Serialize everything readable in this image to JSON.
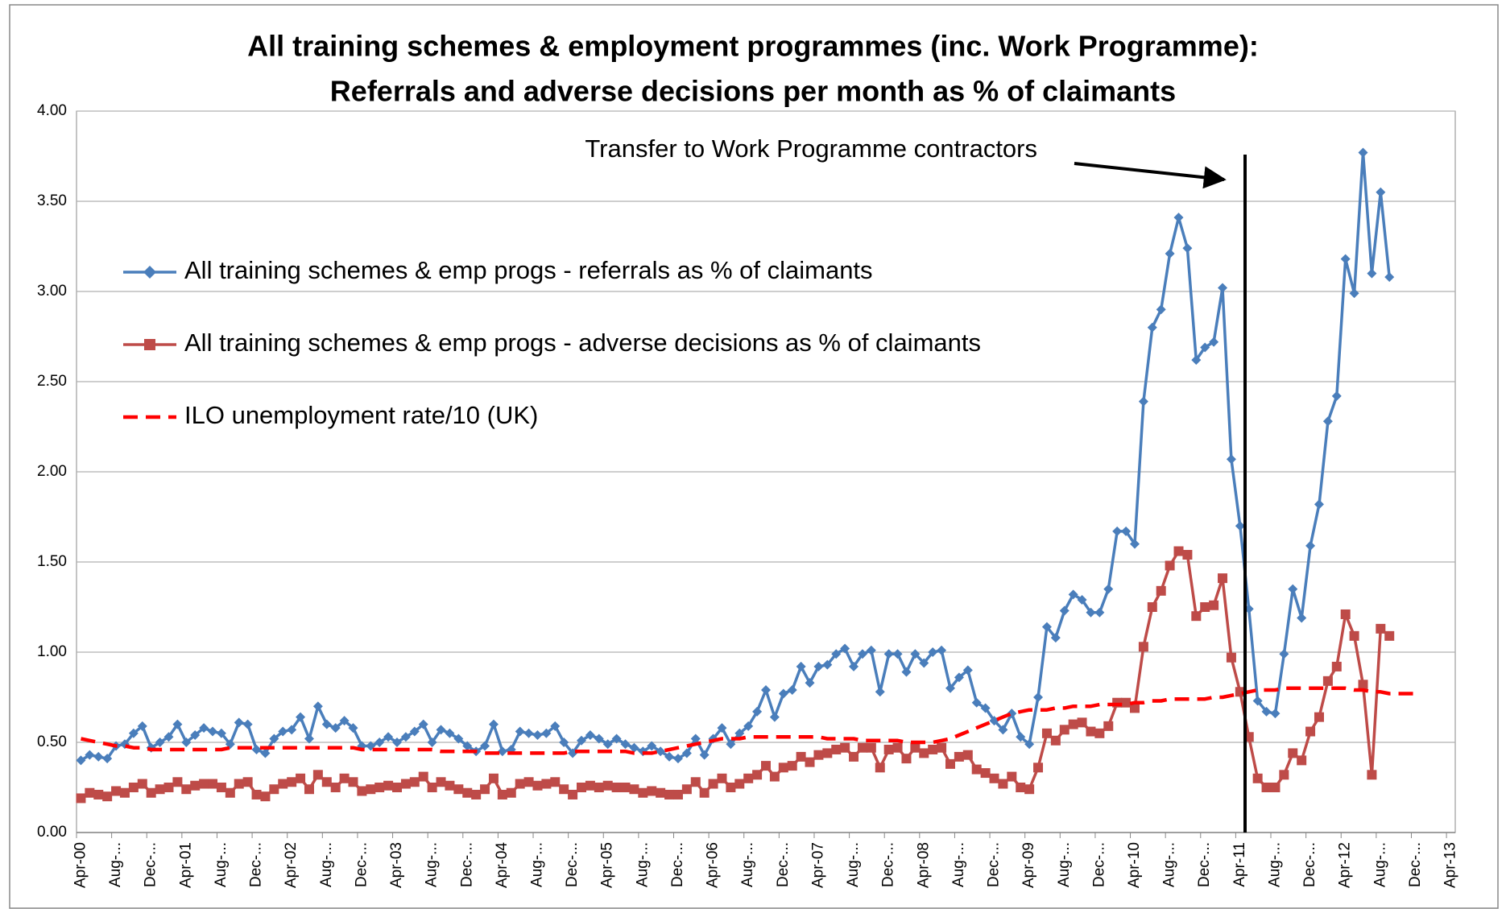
{
  "chart_data": {
    "type": "line",
    "title": "All training schemes & employment programmes (inc. Work Programme):",
    "subtitle": "Referrals and adverse decisions per month as % of claimants",
    "annotation": "Transfer to  Work Programme contractors",
    "categories": [
      "Apr-00",
      null,
      null,
      null,
      "Aug-...",
      null,
      null,
      null,
      "Dec-...",
      null,
      null,
      null,
      "Apr-01",
      null,
      null,
      null,
      "Aug-...",
      null,
      null,
      null,
      "Dec-...",
      null,
      null,
      null,
      "Apr-02",
      null,
      null,
      null,
      "Aug-...",
      null,
      null,
      null,
      "Dec-...",
      null,
      null,
      null,
      "Apr-03",
      null,
      null,
      null,
      "Aug-...",
      null,
      null,
      null,
      "Dec-...",
      null,
      null,
      null,
      "Apr-04",
      null,
      null,
      null,
      "Aug-...",
      null,
      null,
      null,
      "Dec-...",
      null,
      null,
      null,
      "Apr-05",
      null,
      null,
      null,
      "Aug-...",
      null,
      null,
      null,
      "Dec-...",
      null,
      null,
      null,
      "Apr-06",
      null,
      null,
      null,
      "Aug-...",
      null,
      null,
      null,
      "Dec-...",
      null,
      null,
      null,
      "Apr-07",
      null,
      null,
      null,
      "Aug-...",
      null,
      null,
      null,
      "Dec-...",
      null,
      null,
      null,
      "Apr-08",
      null,
      null,
      null,
      "Aug-...",
      null,
      null,
      null,
      "Dec-...",
      null,
      null,
      null,
      "Apr-09",
      null,
      null,
      null,
      "Aug-...",
      null,
      null,
      null,
      "Dec-...",
      null,
      null,
      null,
      "Apr-10",
      null,
      null,
      null,
      "Aug-...",
      null,
      null,
      null,
      "Dec-...",
      null,
      null,
      null,
      "Apr-11",
      null,
      null,
      null,
      "Aug-...",
      null,
      null,
      null,
      "Dec-...",
      null,
      null,
      null,
      "Apr-12",
      null,
      null,
      null,
      "Aug-...",
      null,
      null,
      null,
      "Dec-...",
      null,
      null,
      null,
      "Apr-13"
    ],
    "series": [
      {
        "name": "All training schemes & emp progs - referrals as % of claimants",
        "color": "#4a7ebb",
        "marker": "diamond",
        "values": [
          0.4,
          0.43,
          0.42,
          0.41,
          0.48,
          0.49,
          0.55,
          0.59,
          0.47,
          0.5,
          0.53,
          0.6,
          0.5,
          0.54,
          0.58,
          0.56,
          0.55,
          0.49,
          0.61,
          0.6,
          0.46,
          0.44,
          0.52,
          0.56,
          0.57,
          0.64,
          0.52,
          0.7,
          0.6,
          0.58,
          0.62,
          0.58,
          0.48,
          0.48,
          0.5,
          0.53,
          0.5,
          0.53,
          0.56,
          0.6,
          0.5,
          0.57,
          0.55,
          0.52,
          0.48,
          0.45,
          0.48,
          0.6,
          0.45,
          0.46,
          0.56,
          0.55,
          0.54,
          0.55,
          0.59,
          0.5,
          0.44,
          0.51,
          0.54,
          0.52,
          0.49,
          0.52,
          0.49,
          0.47,
          0.45,
          0.48,
          0.45,
          0.42,
          0.41,
          0.44,
          0.52,
          0.43,
          0.52,
          0.58,
          0.49,
          0.55,
          0.59,
          0.67,
          0.79,
          0.64,
          0.77,
          0.79,
          0.92,
          0.83,
          0.92,
          0.93,
          0.99,
          1.02,
          0.92,
          0.99,
          1.01,
          0.78,
          0.99,
          0.99,
          0.89,
          0.99,
          0.94,
          1.0,
          1.01,
          0.8,
          0.86,
          0.9,
          0.72,
          0.69,
          0.62,
          0.57,
          0.66,
          0.53,
          0.49,
          0.75,
          1.14,
          1.08,
          1.23,
          1.32,
          1.29,
          1.22,
          1.22,
          1.35,
          1.67,
          1.67,
          1.6,
          2.39,
          2.8,
          2.9,
          3.21,
          3.41,
          3.24,
          2.62,
          2.69,
          2.72,
          3.02,
          2.07,
          1.7,
          1.24,
          0.73,
          0.67,
          0.66,
          0.99,
          1.35,
          1.19,
          1.59,
          1.82,
          2.28,
          2.42,
          3.18,
          2.99,
          3.77,
          3.1,
          3.55,
          3.08,
          null,
          null,
          null,
          null,
          null,
          null,
          null
        ]
      },
      {
        "name": "All training schemes & emp progs - adverse decisions as % of claimants",
        "color": "#be4b48",
        "marker": "square",
        "values": [
          0.19,
          0.22,
          0.21,
          0.2,
          0.23,
          0.22,
          0.25,
          0.27,
          0.22,
          0.24,
          0.25,
          0.28,
          0.24,
          0.26,
          0.27,
          0.27,
          0.25,
          0.22,
          0.27,
          0.28,
          0.21,
          0.2,
          0.24,
          0.27,
          0.28,
          0.3,
          0.24,
          0.32,
          0.28,
          0.25,
          0.3,
          0.28,
          0.23,
          0.24,
          0.25,
          0.26,
          0.25,
          0.27,
          0.28,
          0.31,
          0.25,
          0.28,
          0.26,
          0.24,
          0.22,
          0.21,
          0.24,
          0.3,
          0.21,
          0.22,
          0.27,
          0.28,
          0.26,
          0.27,
          0.28,
          0.24,
          0.21,
          0.25,
          0.26,
          0.25,
          0.26,
          0.25,
          0.25,
          0.24,
          0.22,
          0.23,
          0.22,
          0.21,
          0.21,
          0.24,
          0.28,
          0.22,
          0.27,
          0.3,
          0.25,
          0.27,
          0.3,
          0.32,
          0.37,
          0.31,
          0.36,
          0.37,
          0.42,
          0.39,
          0.43,
          0.44,
          0.46,
          0.47,
          0.42,
          0.47,
          0.47,
          0.36,
          0.46,
          0.47,
          0.41,
          0.47,
          0.44,
          0.46,
          0.47,
          0.38,
          0.42,
          0.43,
          0.35,
          0.33,
          0.3,
          0.27,
          0.31,
          0.25,
          0.24,
          0.36,
          0.55,
          0.51,
          0.57,
          0.6,
          0.61,
          0.56,
          0.55,
          0.59,
          0.72,
          0.72,
          0.69,
          1.03,
          1.25,
          1.34,
          1.48,
          1.56,
          1.54,
          1.2,
          1.25,
          1.26,
          1.41,
          0.97,
          0.78,
          0.53,
          0.3,
          0.25,
          0.25,
          0.32,
          0.44,
          0.4,
          0.56,
          0.64,
          0.84,
          0.92,
          1.21,
          1.09,
          0.82,
          0.32,
          1.13,
          1.09,
          null,
          null,
          null,
          null,
          null,
          null,
          null
        ]
      },
      {
        "name": "ILO unemployment rate/10 (UK)",
        "color": "#ff0000",
        "dash": true,
        "values": [
          0.52,
          0.51,
          0.5,
          0.49,
          0.48,
          0.48,
          0.47,
          0.47,
          0.46,
          0.46,
          0.46,
          0.46,
          0.46,
          0.46,
          0.46,
          0.46,
          0.46,
          0.47,
          0.47,
          0.47,
          0.47,
          0.47,
          0.47,
          0.47,
          0.47,
          0.47,
          0.47,
          0.47,
          0.47,
          0.47,
          0.47,
          0.47,
          0.46,
          0.46,
          0.46,
          0.46,
          0.46,
          0.46,
          0.46,
          0.46,
          0.46,
          0.45,
          0.45,
          0.45,
          0.45,
          0.45,
          0.44,
          0.44,
          0.44,
          0.44,
          0.44,
          0.44,
          0.44,
          0.44,
          0.44,
          0.44,
          0.45,
          0.45,
          0.45,
          0.45,
          0.45,
          0.45,
          0.45,
          0.44,
          0.44,
          0.44,
          0.45,
          0.46,
          0.47,
          0.48,
          0.49,
          0.5,
          0.51,
          0.52,
          0.52,
          0.52,
          0.53,
          0.53,
          0.53,
          0.53,
          0.53,
          0.53,
          0.53,
          0.53,
          0.53,
          0.52,
          0.52,
          0.52,
          0.52,
          0.51,
          0.51,
          0.51,
          0.51,
          0.51,
          0.5,
          0.5,
          0.5,
          0.5,
          0.51,
          0.52,
          0.54,
          0.56,
          0.58,
          0.6,
          0.62,
          0.64,
          0.66,
          0.67,
          0.68,
          0.68,
          0.68,
          0.69,
          0.69,
          0.7,
          0.7,
          0.7,
          0.71,
          0.71,
          0.71,
          0.71,
          0.72,
          0.72,
          0.73,
          0.73,
          0.74,
          0.74,
          0.74,
          0.74,
          0.74,
          0.75,
          0.75,
          0.76,
          0.77,
          0.78,
          0.79,
          0.79,
          0.79,
          0.8,
          0.8,
          0.8,
          0.8,
          0.8,
          0.8,
          0.8,
          0.8,
          0.79,
          0.79,
          0.78,
          0.78,
          0.77,
          0.77,
          0.77,
          0.77,
          null,
          null,
          null,
          null
        ]
      }
    ],
    "ylim": [
      0,
      4
    ],
    "yticks": [
      {
        "value": 0,
        "label": "0.00"
      },
      {
        "value": 0.5,
        "label": "0.50"
      },
      {
        "value": 1,
        "label": "1.00"
      },
      {
        "value": 1.5,
        "label": "1.50"
      },
      {
        "value": 2,
        "label": "2.00"
      },
      {
        "value": 2.5,
        "label": "2.50"
      },
      {
        "value": 3,
        "label": "3.00"
      },
      {
        "value": 3.5,
        "label": "3.50"
      },
      {
        "value": 4,
        "label": "4.00"
      }
    ],
    "grid": true,
    "legend": "upper left"
  }
}
